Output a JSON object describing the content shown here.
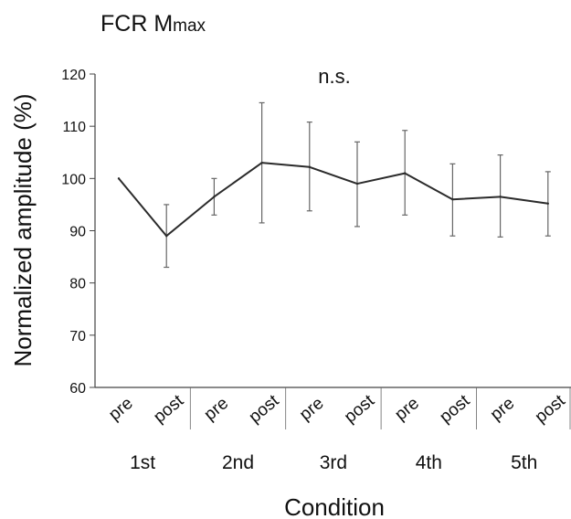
{
  "chart_data": {
    "type": "line",
    "title": "FCR M",
    "title_subscript": "max",
    "annotation": "n.s.",
    "xlabel": "Condition",
    "ylabel": "Normalized amplitude (%)",
    "ylim": [
      60,
      120
    ],
    "yticks": [
      60,
      70,
      80,
      90,
      100,
      110,
      120
    ],
    "groups": [
      "1st",
      "2nd",
      "3rd",
      "4th",
      "5th"
    ],
    "categories": [
      "pre",
      "post",
      "pre",
      "post",
      "pre",
      "post",
      "pre",
      "post",
      "pre",
      "post"
    ],
    "series": [
      {
        "values": [
          100,
          89,
          96.5,
          103,
          102.2,
          99,
          101,
          96,
          96.5,
          95.2
        ],
        "error_low": [
          100,
          83,
          93,
          91.5,
          93.8,
          90.8,
          93,
          89,
          88.8,
          89
        ],
        "error_high": [
          100,
          95,
          100,
          114.5,
          110.8,
          107,
          109.2,
          102.8,
          104.5,
          101.3
        ]
      }
    ],
    "color": "#2b2b2b",
    "error_bar_color": "#666666",
    "grid": false,
    "legend": "none"
  }
}
